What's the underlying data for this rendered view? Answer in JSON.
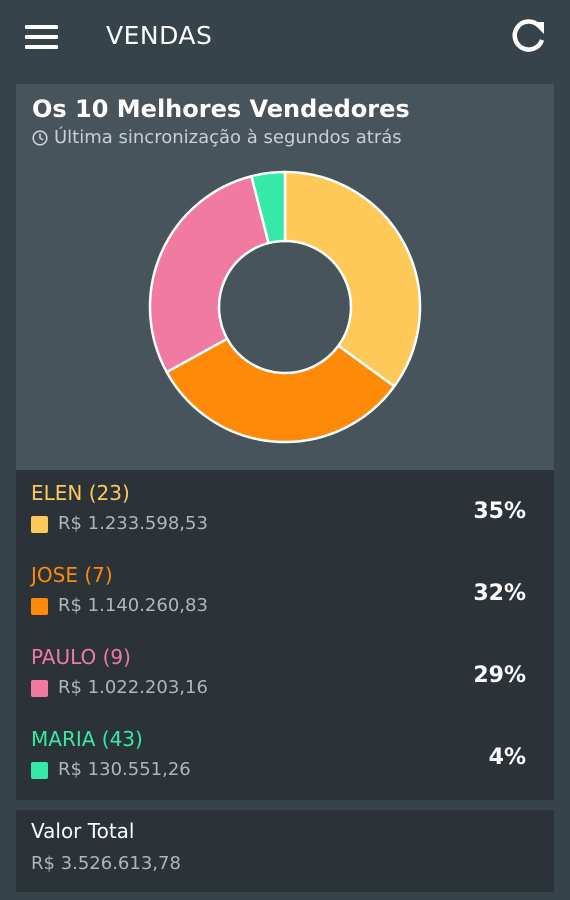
{
  "appbar": {
    "title": "VENDAS",
    "menu_icon": "hamburger-menu-icon",
    "refresh_icon": "refresh-icon"
  },
  "card": {
    "title": "Os 10 Melhores Vendedores",
    "subtitle": "Última sincronização à segundos atrás",
    "subtitle_icon": "clock-icon"
  },
  "colors": {
    "background": "#37434b",
    "card": "#47545b",
    "list": "#2c3338",
    "elen": "#ffc95a",
    "jose": "#ff8a07",
    "paulo": "#f07aa1",
    "maria": "#36e9a8"
  },
  "chart_data": {
    "type": "pie",
    "categories": [
      "ELEN",
      "JOSE",
      "PAULO",
      "MARIA"
    ],
    "values": [
      35,
      32,
      29,
      4
    ],
    "colors": [
      "#ffc95a",
      "#ff8a07",
      "#f07aa1",
      "#36e9a8"
    ],
    "donut": true
  },
  "sellers": [
    {
      "name": "ELEN (23)",
      "value": "R$ 1.233.598,53",
      "pct": "35%",
      "color": "#ffc95a"
    },
    {
      "name": "JOSE (7)",
      "value": "R$ 1.140.260,83",
      "pct": "32%",
      "color": "#ff8a07"
    },
    {
      "name": "PAULO (9)",
      "value": "R$ 1.022.203,16",
      "pct": "29%",
      "color": "#f07aa1"
    },
    {
      "name": "MARIA (43)",
      "value": "R$ 130.551,26",
      "pct": "4%",
      "color": "#36e9a8"
    }
  ],
  "total": {
    "label": "Valor Total",
    "value": "R$ 3.526.613,78"
  }
}
